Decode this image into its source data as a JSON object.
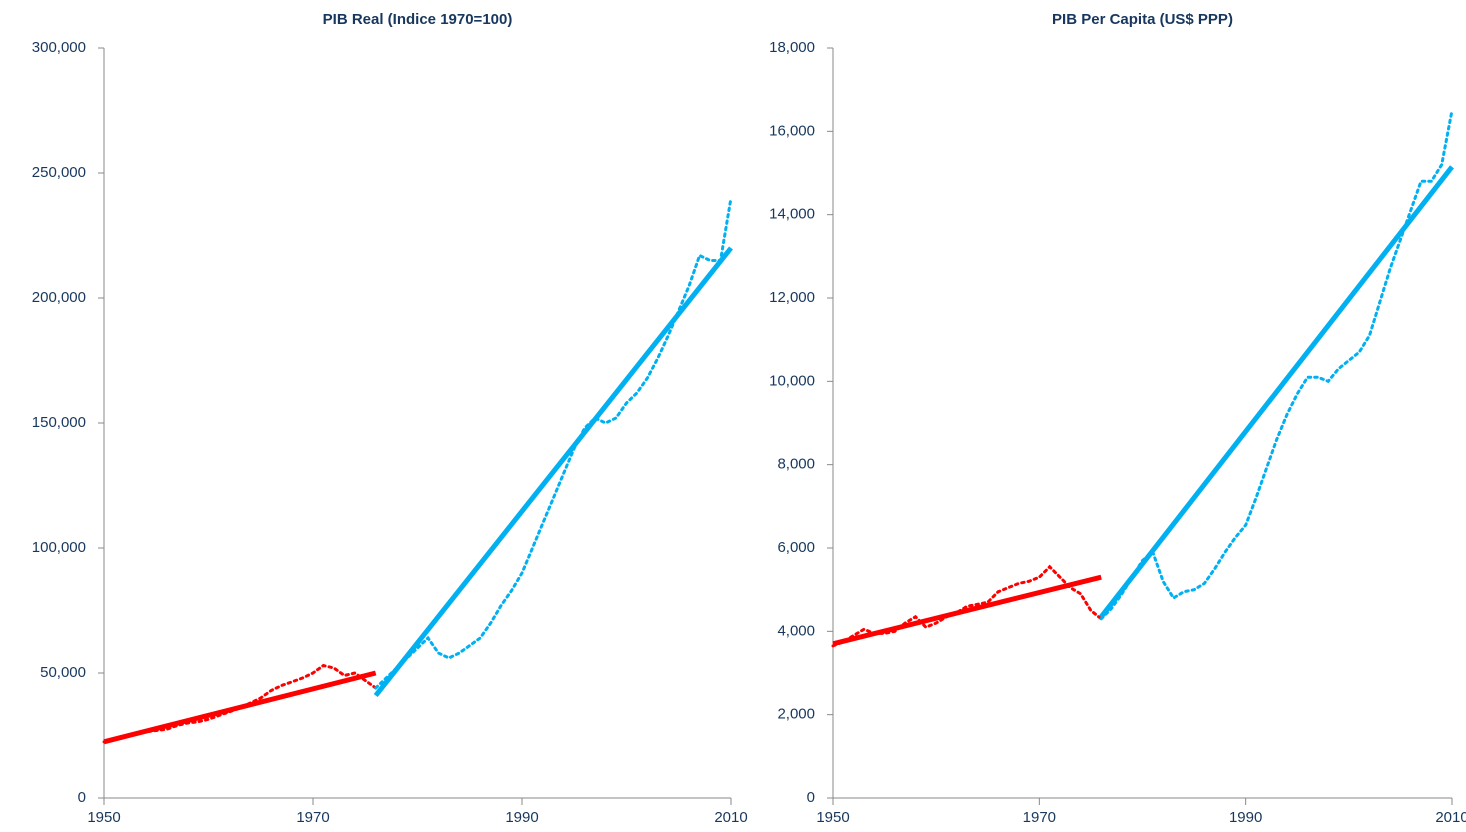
{
  "chart_data": [
    {
      "type": "line",
      "title": "PIB Real (Indice 1970=100)",
      "xlim": [
        1950,
        2010
      ],
      "xticks": [
        1950,
        1970,
        1990,
        2010
      ],
      "ylim": [
        0,
        300000
      ],
      "yticks": [
        0,
        {
          "value": 50000,
          "label": "50,000"
        },
        {
          "value": 100000,
          "label": "100,000"
        },
        {
          "value": 150000,
          "label": "150,000"
        },
        {
          "value": 200000,
          "label": "200,000"
        },
        {
          "value": 250000,
          "label": "250,000"
        },
        {
          "value": 300000,
          "label": "300,000"
        }
      ],
      "series": [
        {
          "color": "#ff0000",
          "style": "dotted",
          "x": [
            1950,
            1951,
            1952,
            1953,
            1954,
            1955,
            1956,
            1957,
            1958,
            1959,
            1960,
            1961,
            1962,
            1963,
            1964,
            1965,
            1966,
            1967,
            1968,
            1969,
            1970,
            1971,
            1972,
            1973,
            1974,
            1975,
            1976
          ],
          "values": [
            22500,
            23500,
            24500,
            25500,
            26500,
            27000,
            27500,
            29000,
            30000,
            30500,
            31500,
            33000,
            34500,
            36000,
            38000,
            40000,
            43000,
            45000,
            46500,
            48000,
            50000,
            53000,
            52000,
            49000,
            50000,
            47000,
            44000
          ]
        },
        {
          "color": "#00b0f0",
          "style": "dotted",
          "x": [
            1976,
            1977,
            1978,
            1979,
            1980,
            1981,
            1982,
            1983,
            1984,
            1985,
            1986,
            1987,
            1988,
            1989,
            1990,
            1991,
            1992,
            1993,
            1994,
            1995,
            1996,
            1997,
            1998,
            1999,
            2000,
            2001,
            2002,
            2003,
            2004,
            2005,
            2006,
            2007,
            2008,
            2009,
            2010
          ],
          "values": [
            44000,
            48000,
            52000,
            56000,
            60000,
            64000,
            58000,
            56000,
            58000,
            61000,
            64000,
            70000,
            77000,
            83000,
            90000,
            100000,
            110000,
            120000,
            130000,
            140000,
            148000,
            152000,
            150000,
            152000,
            158000,
            162000,
            168000,
            176000,
            185000,
            195000,
            205000,
            217000,
            215000,
            215000,
            240000
          ]
        },
        {
          "color": "#ff0000",
          "style": "solid",
          "x": [
            1950,
            1976
          ],
          "values": [
            22500,
            50000
          ]
        },
        {
          "color": "#00b0f0",
          "style": "solid",
          "x": [
            1976,
            2010
          ],
          "values": [
            41000,
            220000
          ]
        }
      ]
    },
    {
      "type": "line",
      "title": "PIB Per Capita (US$ PPP)",
      "xlim": [
        1950,
        2010
      ],
      "xticks": [
        1950,
        1970,
        1990,
        2010
      ],
      "ylim": [
        0,
        18000
      ],
      "yticks": [
        0,
        {
          "value": 2000,
          "label": "2,000"
        },
        {
          "value": 4000,
          "label": "4,000"
        },
        {
          "value": 6000,
          "label": "6,000"
        },
        {
          "value": 8000,
          "label": "8,000"
        },
        {
          "value": 10000,
          "label": "10,000"
        },
        {
          "value": 12000,
          "label": "12,000"
        },
        {
          "value": 14000,
          "label": "14,000"
        },
        {
          "value": 16000,
          "label": "16,000"
        },
        {
          "value": 18000,
          "label": "18,000"
        }
      ],
      "series": [
        {
          "color": "#ff0000",
          "style": "dotted",
          "x": [
            1950,
            1951,
            1952,
            1953,
            1954,
            1955,
            1956,
            1957,
            1958,
            1959,
            1960,
            1961,
            1962,
            1963,
            1964,
            1965,
            1966,
            1967,
            1968,
            1969,
            1970,
            1971,
            1972,
            1973,
            1974,
            1975,
            1976
          ],
          "values": [
            3650,
            3750,
            3900,
            4050,
            3950,
            3950,
            4000,
            4200,
            4350,
            4100,
            4200,
            4350,
            4450,
            4600,
            4650,
            4700,
            4950,
            5050,
            5150,
            5200,
            5300,
            5550,
            5300,
            5050,
            4900,
            4500,
            4300
          ]
        },
        {
          "color": "#00b0f0",
          "style": "dotted",
          "x": [
            1976,
            1977,
            1978,
            1979,
            1980,
            1981,
            1982,
            1983,
            1984,
            1985,
            1986,
            1987,
            1988,
            1989,
            1990,
            1991,
            1992,
            1993,
            1994,
            1995,
            1996,
            1997,
            1998,
            1999,
            2000,
            2001,
            2002,
            2003,
            2004,
            2005,
            2006,
            2007,
            2008,
            2009,
            2010
          ],
          "values": [
            4300,
            4550,
            4900,
            5300,
            5700,
            5900,
            5200,
            4800,
            4950,
            5000,
            5150,
            5500,
            5900,
            6250,
            6550,
            7200,
            7900,
            8600,
            9200,
            9700,
            10100,
            10100,
            10000,
            10300,
            10500,
            10700,
            11100,
            11900,
            12700,
            13400,
            14100,
            14800,
            14800,
            15200,
            16500
          ]
        },
        {
          "color": "#ff0000",
          "style": "solid",
          "x": [
            1950,
            1976
          ],
          "values": [
            3700,
            5300
          ]
        },
        {
          "color": "#00b0f0",
          "style": "solid",
          "x": [
            1976,
            2010
          ],
          "values": [
            4350,
            15150
          ]
        }
      ]
    }
  ]
}
